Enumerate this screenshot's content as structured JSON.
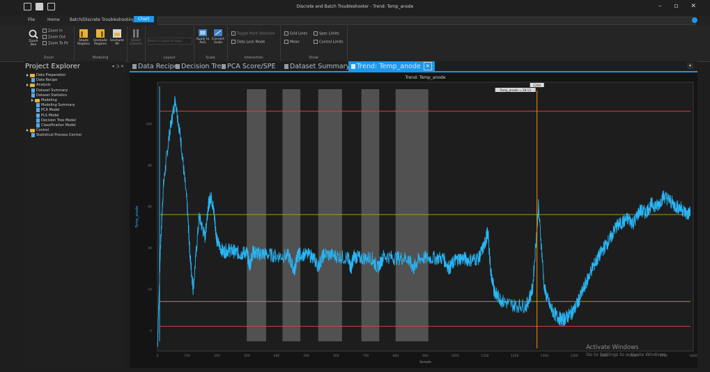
{
  "window": {
    "title": "Discrete and Batch Troubleshooter - Trend: Temp_anode",
    "minimize": "–",
    "maximize": "▫",
    "close": "✕"
  },
  "menu": {
    "items": [
      "File",
      "Home",
      "Batch/Discrete Troubleshooting",
      "Chart"
    ],
    "active_index": 3
  },
  "ribbon": {
    "zoom_group": {
      "label": "Zoom",
      "zoom_box": "Zoom Box",
      "zoom_in": "Zoom In",
      "zoom_out": "Zoom Out",
      "zoom_to_fit": "Zoom To Fit"
    },
    "modeling_group": {
      "label": "Modeling",
      "shade_regions": "Shade Regions",
      "unshade_regions": "Unshade Regions",
      "unshade_all": "Unshade All"
    },
    "select_group": {
      "label": "",
      "select_column": "Select Column"
    },
    "layout_group": {
      "label": "Layout",
      "input": "Select a Layout to Apply"
    },
    "scale_group": {
      "label": "Scale",
      "apply_to_axis": "Apply to Axis",
      "convert": "Convert Scale"
    },
    "interaction_group": {
      "label": "Interaction",
      "items": [
        "Toggle Point Selection",
        "Data Lock Mode"
      ]
    },
    "show_group": {
      "label": "Show",
      "items": [
        "Grid Lines",
        "Mean",
        "Spec Limits",
        "Control Limits"
      ]
    }
  },
  "explorer": {
    "title": "Project Explorer",
    "pins": "▾ ⊐ ✕",
    "tree": [
      {
        "label": "Data Preparation",
        "level": 0,
        "type": "folder"
      },
      {
        "label": "Data Recipe",
        "level": 1,
        "type": "doc"
      },
      {
        "label": "Analysis",
        "level": 0,
        "type": "folder"
      },
      {
        "label": "Dataset Summary",
        "level": 1,
        "type": "doc"
      },
      {
        "label": "Dataset Statistics",
        "level": 1,
        "type": "doc"
      },
      {
        "label": "Modeling",
        "level": 1,
        "type": "folder"
      },
      {
        "label": "Modeling Summary",
        "level": 2,
        "type": "doc"
      },
      {
        "label": "PCA Model",
        "level": 2,
        "type": "doc"
      },
      {
        "label": "PLS Model",
        "level": 2,
        "type": "doc"
      },
      {
        "label": "Decision Tree Model",
        "level": 2,
        "type": "doc"
      },
      {
        "label": "Classification Model",
        "level": 2,
        "type": "doc"
      },
      {
        "label": "Control",
        "level": 0,
        "type": "folder"
      },
      {
        "label": "Statistical Process Control",
        "level": 1,
        "type": "doc"
      }
    ]
  },
  "tabs": [
    {
      "label": "Data Recipe",
      "icon": "recipe-icon"
    },
    {
      "label": "Decision Tree",
      "icon": "tree-icon"
    },
    {
      "label": "PCA Score/SPE",
      "icon": "pca-icon"
    },
    {
      "label": "Dataset Summary",
      "icon": "summary-icon"
    },
    {
      "label": "Trend: Temp_anode",
      "icon": "trend-icon",
      "active": true
    }
  ],
  "watermark": {
    "line1": "Activate Windows",
    "line2": "Go to Settings to activate Windows."
  },
  "colors": {
    "accent": "#1c97ea",
    "series": "#29b6f6",
    "spec_limit": "#e53935",
    "control_limit": "#9e9d24",
    "cursor": "#ff8f00",
    "shaded": "#5a5a5a"
  },
  "chart_data": {
    "type": "line",
    "title": "Trend: Temp_anode",
    "ylabel": "Temp_anode",
    "xlabel": "Sample",
    "xlim": [
      0,
      1800
    ],
    "ylim": [
      -10,
      120
    ],
    "xticks": [
      0,
      100,
      200,
      300,
      400,
      500,
      600,
      700,
      800,
      900,
      1000,
      1100,
      1200,
      1300,
      1400,
      1500,
      1600,
      1700,
      1800
    ],
    "yticks": [
      0,
      20,
      40,
      60,
      80,
      100
    ],
    "grid": false,
    "series": [
      {
        "name": "Temp_anode",
        "x": [
          0,
          10,
          20,
          40,
          60,
          80,
          100,
          110,
          120,
          140,
          160,
          170,
          180,
          190,
          200,
          220,
          240,
          260,
          280,
          300,
          310,
          320,
          340,
          360,
          400,
          440,
          460,
          470,
          480,
          520,
          540,
          560,
          600,
          640,
          650,
          660,
          680,
          720,
          740,
          760,
          800,
          840,
          860,
          880,
          920,
          960,
          980,
          1000,
          1020,
          1050,
          1080,
          1100,
          1110,
          1120,
          1130,
          1140,
          1160,
          1200,
          1240,
          1260,
          1280,
          1300,
          1320,
          1340,
          1360,
          1380,
          1400,
          1420,
          1440,
          1460,
          1480,
          1500,
          1520,
          1540,
          1560,
          1580,
          1600,
          1620,
          1640,
          1660,
          1680,
          1700,
          1720,
          1740,
          1760,
          1780,
          1790
        ],
        "y": [
          -8,
          40,
          70,
          95,
          112,
          90,
          60,
          35,
          20,
          55,
          45,
          60,
          65,
          57,
          43,
          38,
          39,
          38,
          37,
          38,
          31,
          38,
          37,
          37,
          36,
          36,
          29,
          36,
          37,
          36,
          31,
          37,
          36,
          35,
          30,
          36,
          35,
          35,
          30,
          36,
          35,
          35,
          30,
          35,
          35,
          35,
          30,
          34,
          35,
          34,
          35,
          42,
          48,
          28,
          20,
          17,
          14,
          12,
          12,
          20,
          60,
          20,
          11,
          7,
          5,
          7,
          10,
          16,
          23,
          30,
          35,
          40,
          44,
          50,
          52,
          54,
          52,
          58,
          57,
          61,
          60,
          65,
          63,
          60,
          59,
          56,
          57
        ]
      }
    ],
    "spec_limits": {
      "upper": 106,
      "lower": 2
    },
    "control_limits": {
      "upper": 56,
      "lower": 14
    },
    "shaded_regions": [
      [
        300,
        365
      ],
      [
        420,
        480
      ],
      [
        540,
        620
      ],
      [
        685,
        745
      ],
      [
        800,
        910
      ]
    ],
    "cursor": {
      "x": 1275,
      "label": "1264",
      "value": "Temp_anode = 28.13"
    }
  }
}
